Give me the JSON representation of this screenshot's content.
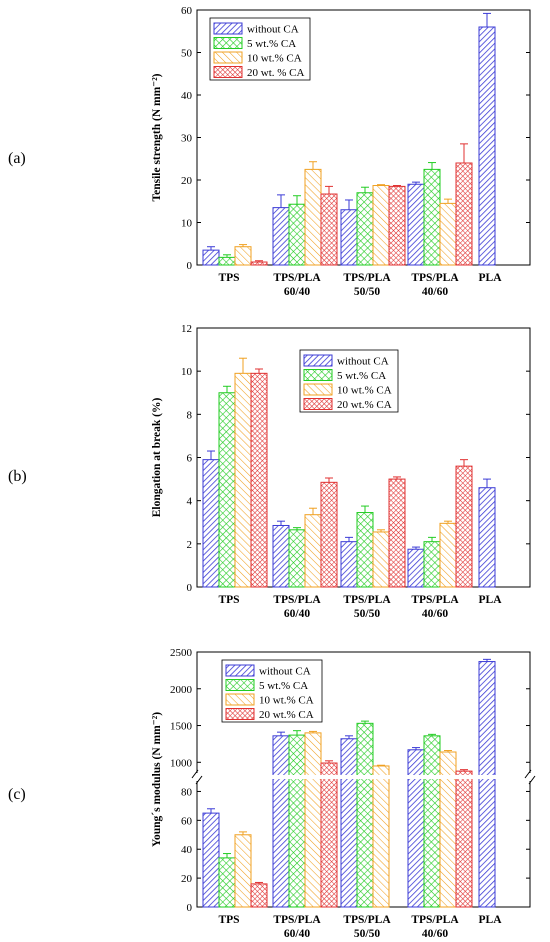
{
  "colors": {
    "without_ca": "#3b3bd6",
    "ca5": "#22cc22",
    "ca10": "#f0a020",
    "ca20": "#e03030"
  },
  "chart_data": [
    {
      "type": "bar",
      "panel_label": "(a)",
      "ylabel": "Tensile strength (N mm⁻²)",
      "ylim": [
        0,
        60
      ],
      "yticks": [
        0,
        10,
        20,
        30,
        40,
        50,
        60
      ],
      "categories": [
        [
          "TPS"
        ],
        [
          "TPS/PLA",
          "60/40"
        ],
        [
          "TPS/PLA",
          "50/50"
        ],
        [
          "TPS/PLA",
          "40/60"
        ],
        [
          "PLA"
        ]
      ],
      "legend_position": "top-left",
      "grid": false,
      "series": [
        {
          "name": "without CA",
          "values": [
            3.5,
            13.5,
            13.0,
            19.0,
            56.0
          ],
          "errors": [
            0.8,
            3.0,
            2.3,
            0.5,
            3.2
          ]
        },
        {
          "name": "5 wt.% CA",
          "values": [
            1.8,
            14.3,
            17.0,
            22.5,
            null
          ],
          "errors": [
            0.6,
            2.0,
            1.3,
            1.6,
            null
          ]
        },
        {
          "name": "10 wt.% CA",
          "values": [
            4.3,
            22.5,
            18.7,
            14.5,
            null
          ],
          "errors": [
            0.5,
            1.8,
            0.2,
            1.0,
            null
          ]
        },
        {
          "name": "20 wt. % CA",
          "values": [
            0.7,
            16.7,
            18.5,
            24.0,
            null
          ],
          "errors": [
            0.3,
            1.8,
            0.2,
            4.5,
            null
          ]
        }
      ]
    },
    {
      "type": "bar",
      "panel_label": "(b)",
      "ylabel": "Elongation at break (%)",
      "ylim": [
        0,
        12
      ],
      "yticks": [
        0,
        2,
        4,
        6,
        8,
        10,
        12
      ],
      "categories": [
        [
          "TPS"
        ],
        [
          "TPS/PLA",
          "60/40"
        ],
        [
          "TPS/PLA",
          "50/50"
        ],
        [
          "TPS/PLA",
          "40/60"
        ],
        [
          "PLA"
        ]
      ],
      "legend_position": "top-center",
      "grid": false,
      "series": [
        {
          "name": "without CA",
          "values": [
            5.9,
            2.85,
            2.1,
            1.75,
            4.6
          ],
          "errors": [
            0.4,
            0.2,
            0.2,
            0.1,
            0.4
          ]
        },
        {
          "name": "5 wt.% CA",
          "values": [
            9.0,
            2.65,
            3.45,
            2.1,
            null
          ],
          "errors": [
            0.3,
            0.1,
            0.3,
            0.2,
            null
          ]
        },
        {
          "name": "10 wt.% CA",
          "values": [
            9.9,
            3.35,
            2.55,
            2.95,
            null
          ],
          "errors": [
            0.7,
            0.3,
            0.1,
            0.1,
            null
          ]
        },
        {
          "name": "20 wt.% CA",
          "values": [
            9.9,
            4.85,
            5.0,
            5.6,
            null
          ],
          "errors": [
            0.2,
            0.2,
            0.1,
            0.3,
            null
          ]
        }
      ]
    },
    {
      "type": "bar",
      "panel_label": "(c)",
      "ylabel": "Young´s modulus (N mm⁻²)",
      "broken_axis": {
        "lower_range": [
          0,
          90
        ],
        "upper_range": [
          800,
          2500
        ]
      },
      "yticks_lower": [
        0,
        20,
        40,
        60,
        80
      ],
      "yticks_upper": [
        1000,
        1500,
        2000,
        2500
      ],
      "categories": [
        [
          "TPS"
        ],
        [
          "TPS/PLA",
          "60/40"
        ],
        [
          "TPS/PLA",
          "50/50"
        ],
        [
          "TPS/PLA",
          "40/60"
        ],
        [
          "PLA"
        ]
      ],
      "legend_position": "top-left",
      "grid": false,
      "series": [
        {
          "name": "without CA",
          "values": [
            65,
            1360,
            1320,
            1170,
            2370
          ],
          "errors": [
            3,
            50,
            40,
            30,
            30
          ]
        },
        {
          "name": "5 wt.% CA",
          "values": [
            34,
            1370,
            1530,
            1360,
            null
          ],
          "errors": [
            3,
            60,
            30,
            20,
            null
          ]
        },
        {
          "name": "10 wt.% CA",
          "values": [
            50,
            1400,
            950,
            1140,
            null
          ],
          "errors": [
            2,
            20,
            10,
            20,
            null
          ]
        },
        {
          "name": "20 wt.% CA",
          "values": [
            16,
            990,
            null,
            880,
            null
          ],
          "errors": [
            1,
            30,
            null,
            20,
            null
          ]
        }
      ]
    }
  ]
}
